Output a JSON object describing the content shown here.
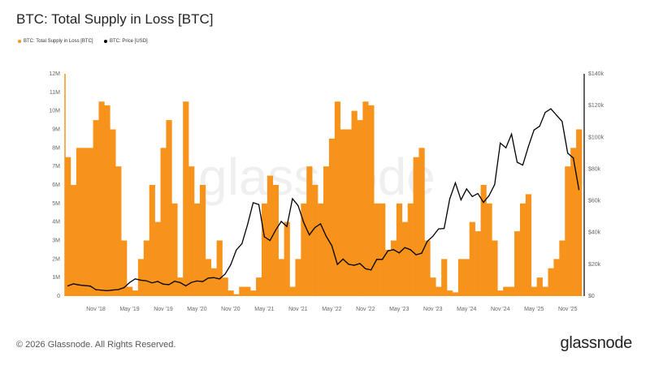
{
  "chart_data": {
    "type": "area+line",
    "title": "BTC: Total Supply in Loss [BTC]",
    "legend": [
      {
        "name": "BTC: Total Supply in Loss [BTC]",
        "color": "#f7931a"
      },
      {
        "name": "BTC: Price [USD]",
        "color": "#000000"
      }
    ],
    "legend_position": "top-left",
    "start_month": "2018-06",
    "x_ticks": [
      "Nov '18",
      "May '19",
      "Nov '19",
      "May '20",
      "Nov '20",
      "May '21",
      "Nov '21",
      "May '22",
      "Nov '22",
      "May '23",
      "Nov '23",
      "May '24",
      "Nov '24",
      "May '25",
      "Nov '25"
    ],
    "x_tick_months": [
      "2018-11",
      "2019-05",
      "2019-11",
      "2020-05",
      "2020-11",
      "2021-05",
      "2021-11",
      "2022-05",
      "2022-11",
      "2023-05",
      "2023-11",
      "2024-05",
      "2024-11",
      "2025-05",
      "2025-11"
    ],
    "y_left": {
      "range": [
        0,
        12000000
      ],
      "ticks": [
        "0",
        "1M",
        "2M",
        "3M",
        "4M",
        "5M",
        "6M",
        "7M",
        "8M",
        "9M",
        "10M",
        "11M",
        "12M"
      ]
    },
    "y_right": {
      "range": [
        0,
        140000
      ],
      "ticks": [
        "$0",
        "$20k",
        "$40k",
        "$60k",
        "$80k",
        "$100k",
        "$120k",
        "$140k"
      ]
    },
    "grid": false,
    "series": [
      {
        "name": "BTC: Total Supply in Loss [BTC]",
        "unit": "M BTC",
        "values": [
          7.5,
          6,
          8,
          8,
          8,
          9.5,
          10.5,
          10.3,
          9,
          7,
          3,
          0.5,
          0.3,
          2,
          3,
          6,
          4,
          8,
          9.5,
          5,
          1,
          10.5,
          7,
          5,
          6,
          2,
          1.5,
          3,
          1,
          0.3,
          0.1,
          0.5,
          0.5,
          0.3,
          1,
          5,
          6.5,
          6,
          2,
          4,
          0.5,
          2,
          5,
          7,
          6,
          5,
          7,
          8.5,
          10.5,
          9,
          9,
          10,
          9.5,
          10.5,
          10.3,
          5,
          5,
          2.5,
          3,
          5,
          4,
          5,
          7.5,
          8,
          3,
          1,
          0.5,
          2,
          0.3,
          0.2,
          2,
          2,
          4,
          3.5,
          6,
          5,
          3,
          0.3,
          0.5,
          0.5,
          3.5,
          5,
          5.5,
          0.5,
          1,
          0.5,
          1.5,
          2,
          3,
          7,
          8,
          9
        ]
      },
      {
        "name": "BTC: Price [USD]",
        "unit": "USD",
        "values": [
          6400,
          7700,
          7000,
          6600,
          6300,
          4000,
          3700,
          3400,
          3800,
          4100,
          5300,
          8500,
          10800,
          10000,
          9600,
          8300,
          9200,
          7500,
          7200,
          9300,
          8500,
          6400,
          8600,
          9500,
          9100,
          11300,
          11600,
          10800,
          13800,
          19700,
          29000,
          33000,
          45000,
          58800,
          57700,
          37300,
          35000,
          41500,
          47000,
          43800,
          61300,
          57000,
          46300,
          38500,
          43200,
          45500,
          37700,
          31800,
          19900,
          23300,
          20000,
          19400,
          20500,
          17200,
          16500,
          23100,
          23100,
          28500,
          29200,
          27200,
          30500,
          29200,
          26000,
          27000,
          34500,
          37700,
          42300,
          42600,
          61200,
          71300,
          60600,
          67500,
          62700,
          64600,
          59000,
          63300,
          70300,
          96400,
          93400,
          102000,
          84300,
          82500,
          94200,
          104600,
          107000,
          115700,
          118000,
          114000,
          110000,
          90000,
          87000,
          67000
        ]
      }
    ]
  },
  "watermark": "glassnode",
  "footer": {
    "copyright": "© 2026 Glassnode. All Rights Reserved.",
    "logo": "glassnode"
  }
}
